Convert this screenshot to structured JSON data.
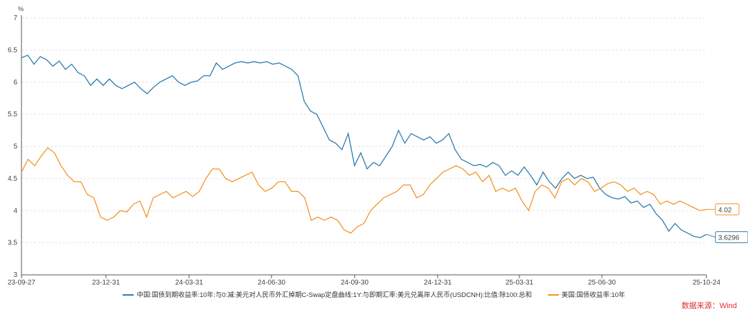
{
  "chart_data": {
    "type": "line",
    "unit_label": "%",
    "ylim": [
      3,
      7
    ],
    "yticks": [
      "3",
      "3.5",
      "4",
      "4.5",
      "5",
      "5.5",
      "6",
      "6.5",
      "7"
    ],
    "xticks": [
      "23-09-27",
      "23-12-31",
      "24-03-31",
      "24-06-30",
      "24-09-30",
      "24-12-31",
      "25-03-31",
      "25-06-30",
      "25-10-24"
    ],
    "x_range": [
      "23-09-27",
      "25-10-24"
    ],
    "grid": true,
    "legend_position": "bottom",
    "series": [
      {
        "name": "中国:国债到期收益率:10年:与0:减:美元对人民币外汇掉期C-Swap定盘曲线:1Y:与即期汇率:美元兑离岸人民币(USDCNH):比值:除100:总和",
        "color": "#2b7bac",
        "last_label": "3.6296",
        "values": [
          6.38,
          6.42,
          6.28,
          6.4,
          6.35,
          6.25,
          6.33,
          6.2,
          6.28,
          6.15,
          6.1,
          5.95,
          6.05,
          5.95,
          6.05,
          5.95,
          5.9,
          5.95,
          6.0,
          5.9,
          5.82,
          5.92,
          6.0,
          6.05,
          6.1,
          6.0,
          5.95,
          6.0,
          6.02,
          6.1,
          6.1,
          6.3,
          6.2,
          6.25,
          6.3,
          6.32,
          6.3,
          6.32,
          6.3,
          6.32,
          6.28,
          6.3,
          6.25,
          6.2,
          6.1,
          5.7,
          5.55,
          5.5,
          5.3,
          5.1,
          5.05,
          4.95,
          5.2,
          4.7,
          4.9,
          4.65,
          4.75,
          4.7,
          4.85,
          5.0,
          5.25,
          5.05,
          5.2,
          5.15,
          5.1,
          5.15,
          5.05,
          5.1,
          5.2,
          4.95,
          4.8,
          4.75,
          4.7,
          4.72,
          4.68,
          4.75,
          4.7,
          4.55,
          4.62,
          4.55,
          4.68,
          4.55,
          4.4,
          4.6,
          4.45,
          4.35,
          4.5,
          4.6,
          4.5,
          4.55,
          4.5,
          4.52,
          4.35,
          4.25,
          4.2,
          4.18,
          4.22,
          4.12,
          4.15,
          4.05,
          4.1,
          3.95,
          3.85,
          3.68,
          3.8,
          3.7,
          3.65,
          3.6,
          3.58,
          3.63
        ]
      },
      {
        "name": "美国:国债收益率:10年",
        "color": "#f39423",
        "last_label": "4.02",
        "values": [
          4.6,
          4.8,
          4.7,
          4.85,
          4.98,
          4.9,
          4.7,
          4.55,
          4.45,
          4.45,
          4.25,
          4.2,
          3.9,
          3.85,
          3.9,
          4.0,
          3.98,
          4.1,
          4.15,
          3.9,
          4.2,
          4.25,
          4.3,
          4.2,
          4.25,
          4.3,
          4.22,
          4.3,
          4.5,
          4.65,
          4.65,
          4.5,
          4.45,
          4.5,
          4.55,
          4.6,
          4.4,
          4.3,
          4.35,
          4.45,
          4.45,
          4.3,
          4.3,
          4.2,
          3.85,
          3.9,
          3.85,
          3.9,
          3.85,
          3.7,
          3.65,
          3.75,
          3.8,
          4.0,
          4.1,
          4.2,
          4.25,
          4.3,
          4.4,
          4.4,
          4.2,
          4.25,
          4.4,
          4.5,
          4.6,
          4.65,
          4.7,
          4.65,
          4.55,
          4.6,
          4.45,
          4.55,
          4.3,
          4.35,
          4.3,
          4.35,
          4.15,
          4.0,
          4.3,
          4.4,
          4.35,
          4.2,
          4.45,
          4.5,
          4.4,
          4.5,
          4.45,
          4.3,
          4.35,
          4.42,
          4.45,
          4.4,
          4.3,
          4.35,
          4.25,
          4.3,
          4.25,
          4.1,
          4.15,
          4.1,
          4.15,
          4.1,
          4.05,
          4.0,
          4.02
        ]
      }
    ]
  },
  "source": "数据来源：Wind"
}
